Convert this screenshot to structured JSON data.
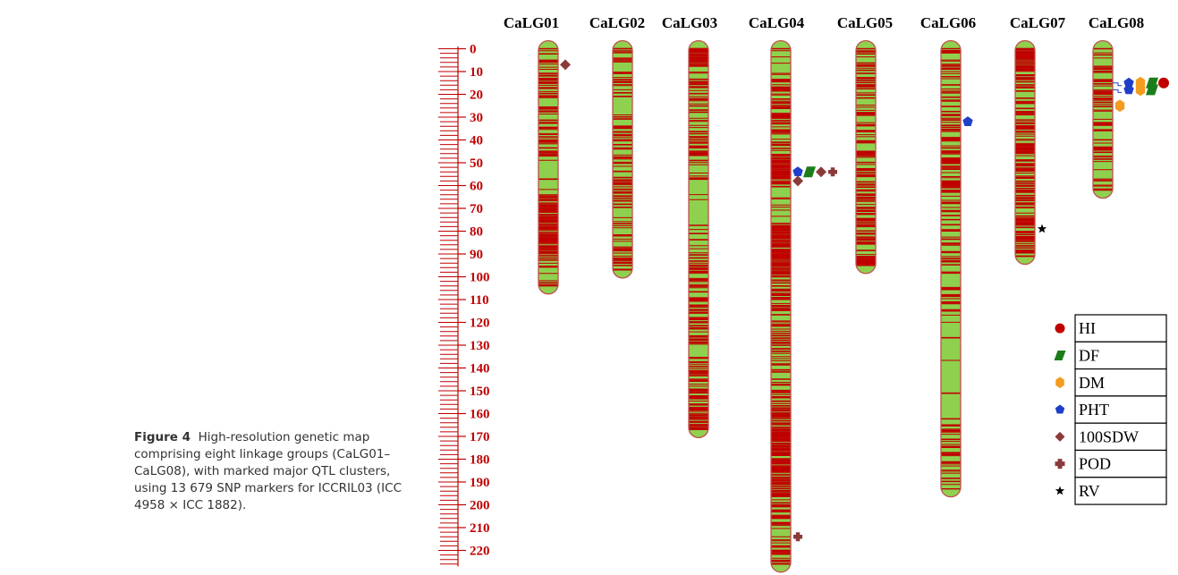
{
  "caption": {
    "label": "Figure 4",
    "text": "High-resolution genetic map comprising eight linkage groups (CaLG01–CaLG08), with marked major QTL clusters, using 13 679 SNP markers for ICCRIL03 (ICC 4958 × ICC 1882)."
  },
  "colors": {
    "chromosome_fill": "#8fd14f",
    "chromosome_outline": "#c0504d",
    "marker": "#c00000",
    "scale": "#c00000"
  },
  "scale": {
    "ticks": [
      "0",
      "10",
      "20",
      "30",
      "40",
      "50",
      "60",
      "70",
      "80",
      "90",
      "100",
      "110",
      "120",
      "130",
      "140",
      "150",
      "160",
      "170",
      "180",
      "190",
      "200",
      "210",
      "220"
    ]
  },
  "linkage_groups": [
    {
      "name": "CaLG01",
      "length": 104
    },
    {
      "name": "CaLG02",
      "length": 97
    },
    {
      "name": "CaLG03",
      "length": 167
    },
    {
      "name": "CaLG04",
      "length": 226
    },
    {
      "name": "CaLG05",
      "length": 95
    },
    {
      "name": "CaLG06",
      "length": 193
    },
    {
      "name": "CaLG07",
      "length": 91
    },
    {
      "name": "CaLG08",
      "length": 62
    }
  ],
  "legend": [
    {
      "label": "HI",
      "symbol": "circle",
      "color": "#c00000"
    },
    {
      "label": "DF",
      "symbol": "parallelogram",
      "color": "#1a7d1a"
    },
    {
      "label": "DM",
      "symbol": "hexagon",
      "color": "#f39c1f"
    },
    {
      "label": "PHT",
      "symbol": "pentagon",
      "color": "#1f3fc8"
    },
    {
      "label": "100SDW",
      "symbol": "diamond",
      "color": "#8b3a3a"
    },
    {
      "label": "POD",
      "symbol": "cross",
      "color": "#8b3a3a"
    },
    {
      "label": "RV",
      "symbol": "star",
      "color": "#000000"
    }
  ],
  "qtls": [
    {
      "group": "CaLG01",
      "position": 7,
      "traits": [
        "100SDW"
      ]
    },
    {
      "group": "CaLG04",
      "position": 54,
      "traits": [
        "PHT",
        "DF",
        "100SDW",
        "POD"
      ]
    },
    {
      "group": "CaLG04",
      "position": 58,
      "traits": [
        "100SDW"
      ]
    },
    {
      "group": "CaLG04",
      "position": 214,
      "traits": [
        "POD"
      ]
    },
    {
      "group": "CaLG06",
      "position": 32,
      "traits": [
        "PHT"
      ]
    },
    {
      "group": "CaLG07",
      "position": 79,
      "traits": [
        "RV"
      ]
    },
    {
      "group": "CaLG08",
      "position": 15,
      "traits": [
        "PHT",
        "DM",
        "DF",
        "HI"
      ]
    },
    {
      "group": "CaLG08",
      "position": 18,
      "traits": [
        "PHT",
        "DM",
        "DF"
      ]
    },
    {
      "group": "CaLG08",
      "position": 25,
      "traits": [
        "DM"
      ]
    }
  ]
}
